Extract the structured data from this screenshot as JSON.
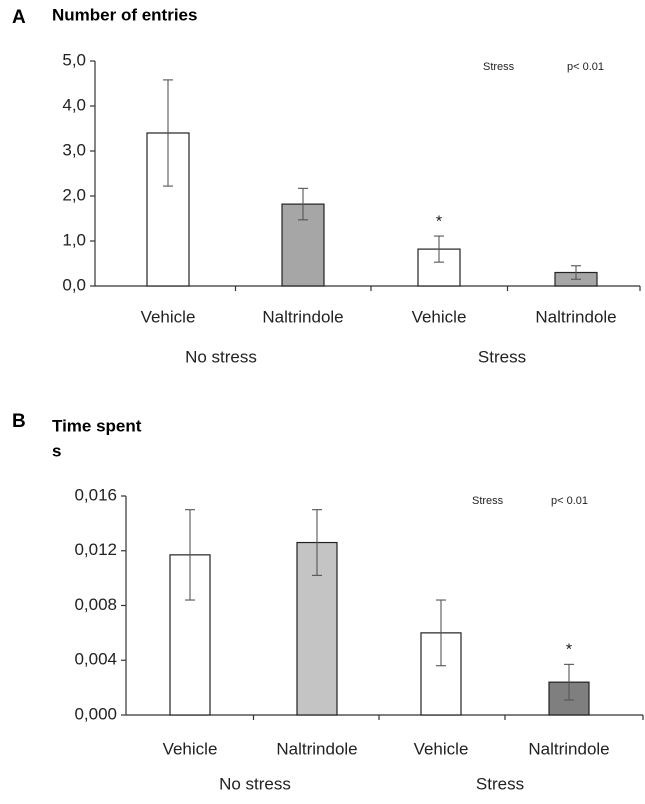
{
  "chart_data": [
    {
      "type": "bar",
      "panel_letter": "A",
      "title": "Number of entries",
      "unit": "",
      "categories": [
        "Vehicle",
        "Naltrindole",
        "Vehicle",
        "Naltrindole"
      ],
      "groups": [
        {
          "label": "No stress",
          "categories": [
            0,
            1
          ]
        },
        {
          "label": "Stress",
          "categories": [
            2,
            3
          ]
        }
      ],
      "values": [
        3.4,
        1.82,
        0.82,
        0.3
      ],
      "errors": [
        1.18,
        0.35,
        0.29,
        0.15
      ],
      "bar_colors": [
        "#ffffff",
        "#a6a6a6",
        "#ffffff",
        "#a6a6a6"
      ],
      "ylim": [
        0,
        5
      ],
      "yticks": [
        0,
        1,
        2,
        3,
        4,
        5
      ],
      "ytick_labels": [
        "0,0",
        "1,0",
        "2,0",
        "3,0",
        "4,0",
        "5,0"
      ],
      "significance": [
        "",
        "",
        "*",
        ""
      ],
      "stats": {
        "factor": "Stress",
        "p": "p< 0.01"
      }
    },
    {
      "type": "bar",
      "panel_letter": "B",
      "title": "Time spent",
      "unit": "s",
      "categories": [
        "Vehicle",
        "Naltrindole",
        "Vehicle",
        "Naltrindole"
      ],
      "groups": [
        {
          "label": "No stress",
          "categories": [
            0,
            1
          ]
        },
        {
          "label": "Stress",
          "categories": [
            2,
            3
          ]
        }
      ],
      "values": [
        0.0117,
        0.0126,
        0.006,
        0.0024
      ],
      "errors": [
        0.0033,
        0.0024,
        0.0024,
        0.0013
      ],
      "bar_colors": [
        "#ffffff",
        "#c4c4c4",
        "#ffffff",
        "#7f7f7f"
      ],
      "ylim": [
        0,
        0.016
      ],
      "yticks": [
        0,
        0.004,
        0.008,
        0.012,
        0.016
      ],
      "ytick_labels": [
        "0,000",
        "0,004",
        "0,008",
        "0,012",
        "0,016"
      ],
      "significance": [
        "",
        "",
        "",
        "*"
      ],
      "stats": {
        "factor": "Stress",
        "p": "p< 0.01"
      }
    }
  ]
}
